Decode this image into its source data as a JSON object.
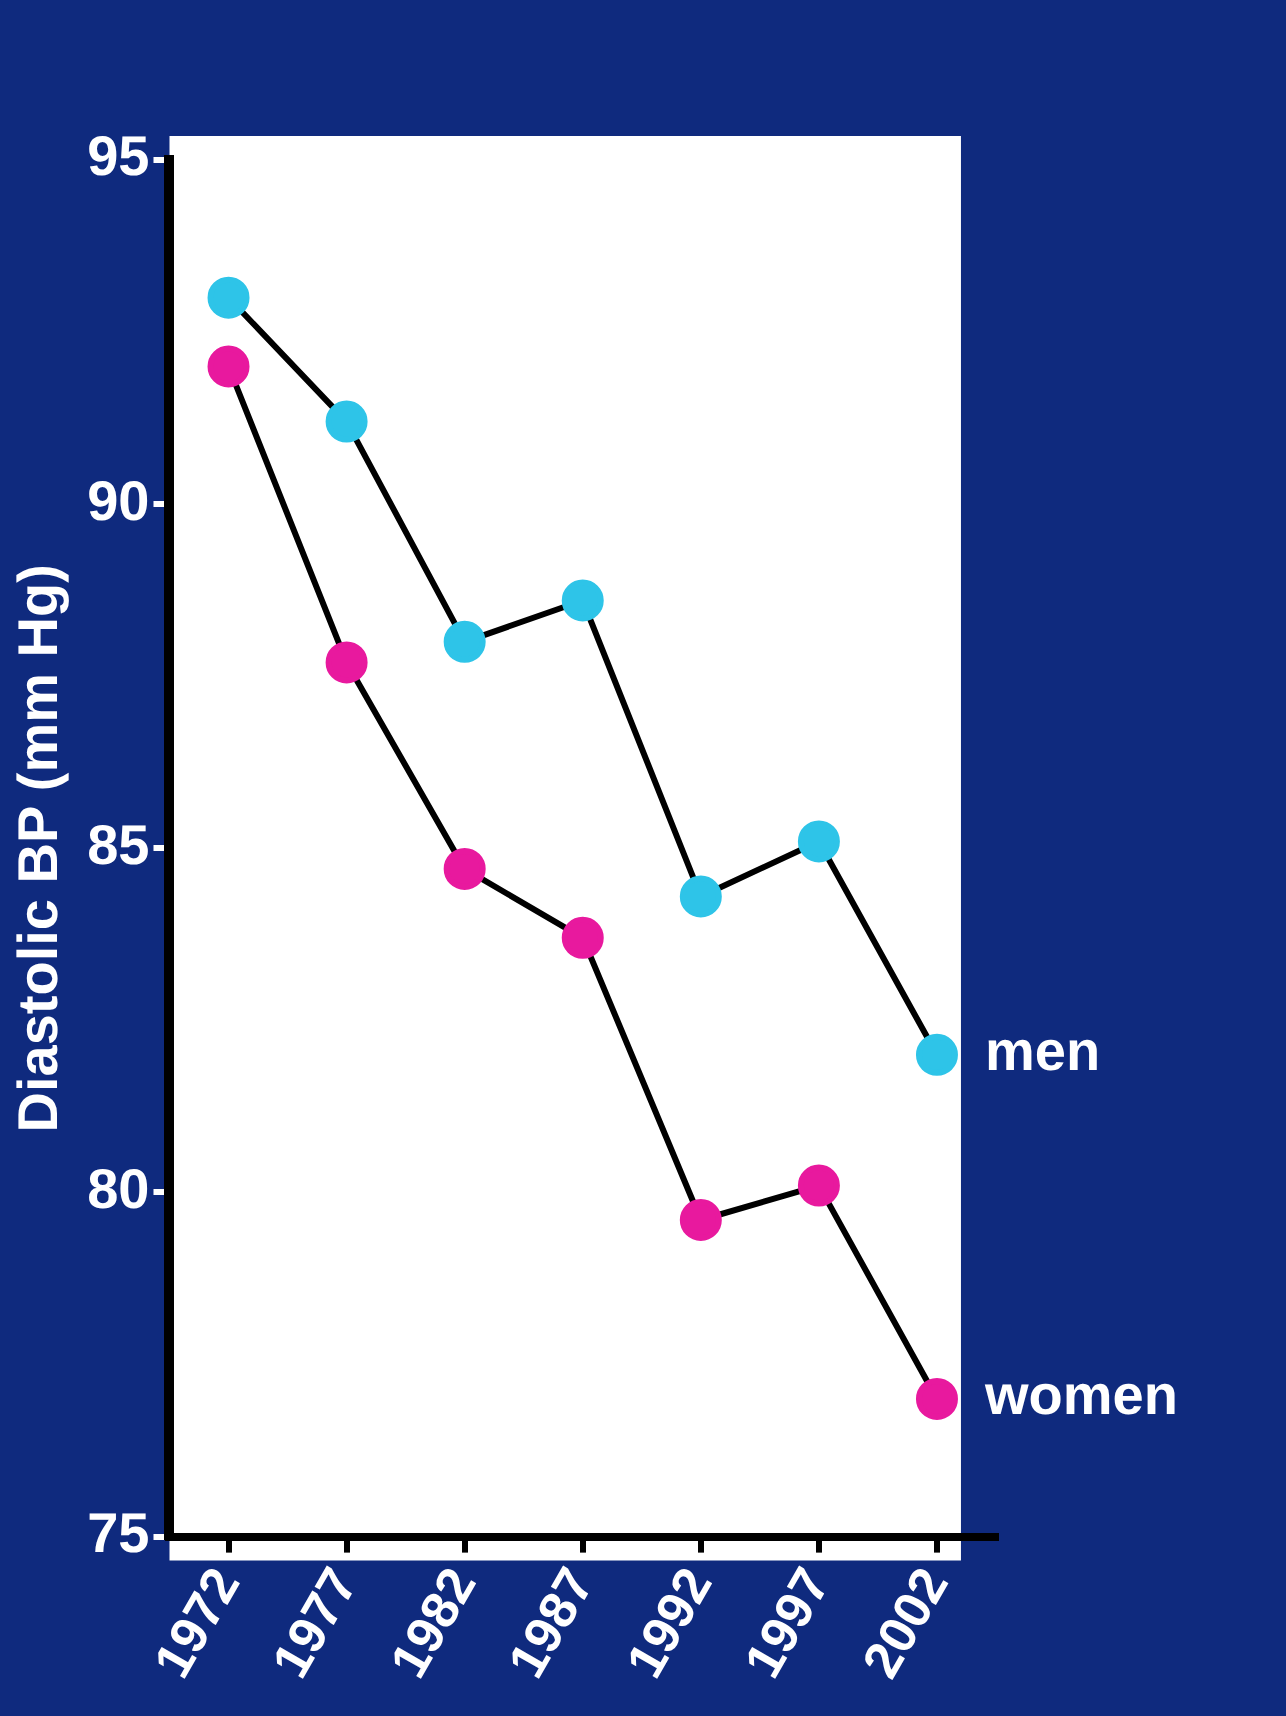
{
  "chart_data": {
    "type": "line",
    "ylabel": "Diastolic BP (mm Hg)",
    "categories": [
      "1972",
      "1977",
      "1982",
      "1987",
      "1992",
      "1997",
      "2002"
    ],
    "series": [
      {
        "name": "men",
        "color": "#2ec4e8",
        "values": [
          93.0,
          91.2,
          88.0,
          88.6,
          84.3,
          85.1,
          82.0
        ]
      },
      {
        "name": "women",
        "color": "#e8199e",
        "values": [
          92.0,
          87.7,
          84.7,
          83.7,
          79.6,
          80.1,
          77.0
        ]
      }
    ],
    "ylim": [
      75,
      95
    ],
    "yticks": [
      75,
      80,
      85,
      90,
      95
    ],
    "grid": false,
    "legend": false,
    "marker": "circle",
    "line_style": "solid"
  }
}
